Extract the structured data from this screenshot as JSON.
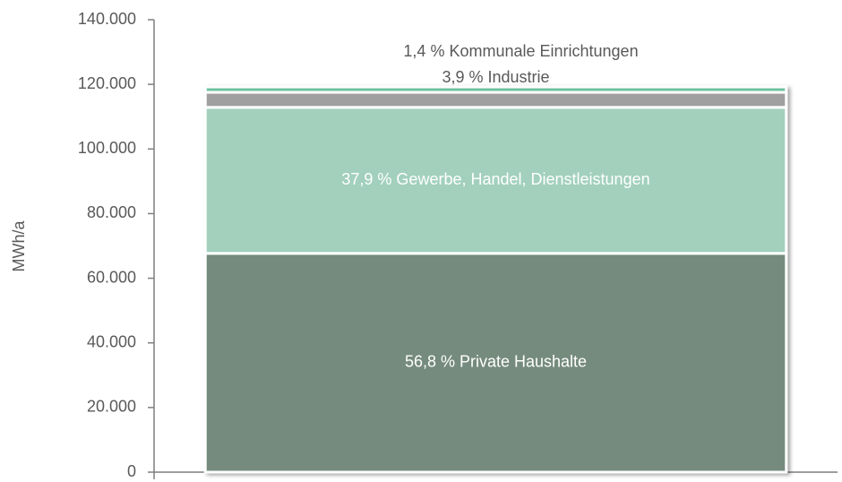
{
  "chart_data": {
    "type": "stacked_bar",
    "y_label": "MWh/a",
    "categories": [
      null
    ],
    "series": [
      {
        "name": "56,8 % Private Haushalte",
        "color": "#748b7d",
        "values": [
          67700
        ]
      },
      {
        "name": "37,9 % Gewerbe, Handel, Dienstleistungen",
        "color": "#a2d0bd",
        "values": [
          45180
        ]
      },
      {
        "name": "3,9 % Industrie",
        "color": "#a0a0a0",
        "values": [
          4650
        ]
      },
      {
        "name": "1,4 % Kommunale Einrichtungen",
        "color": "#6fc2a0",
        "values": [
          1670
        ]
      }
    ],
    "ylim": [
      0,
      140000
    ],
    "yticks": [
      0,
      {
        "value": 20000,
        "label": "20.000"
      },
      {
        "value": 40000,
        "label": "40.000"
      },
      {
        "value": 60000,
        "label": "60.000"
      },
      {
        "value": 80000,
        "label": "80.000"
      },
      {
        "value": 100000,
        "label": "100.000"
      },
      {
        "value": 120000,
        "label": "120.000"
      },
      {
        "value": 140000,
        "label": "140.000"
      }
    ],
    "grid": false
  }
}
